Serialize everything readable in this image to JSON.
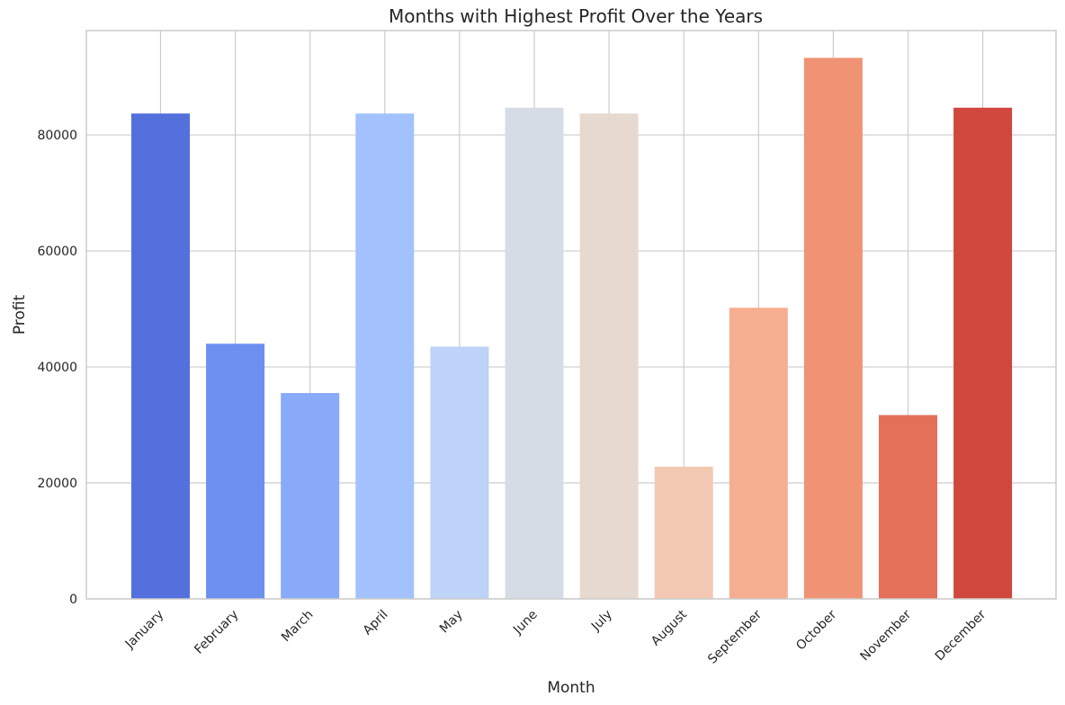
{
  "chart_data": {
    "type": "bar",
    "title": "Months with Highest Profit Over the Years",
    "xlabel": "Month",
    "ylabel": "Profit",
    "categories": [
      "January",
      "February",
      "March",
      "April",
      "May",
      "June",
      "July",
      "August",
      "September",
      "October",
      "November",
      "December"
    ],
    "values": [
      83700,
      44000,
      35500,
      83700,
      43500,
      84700,
      83700,
      22800,
      50200,
      93300,
      31700,
      84700
    ],
    "colors": [
      "#5470dd",
      "#6c8ff0",
      "#89aaf9",
      "#a3c2fd",
      "#bfd2f7",
      "#d5dce6",
      "#e6d9cf",
      "#f3c8b2",
      "#f5ae90",
      "#f09374",
      "#e4705a",
      "#d0473d"
    ],
    "yticks": [
      0,
      20000,
      40000,
      60000,
      80000
    ],
    "ylim": [
      0,
      98000
    ],
    "grid": true,
    "legend": "none"
  }
}
